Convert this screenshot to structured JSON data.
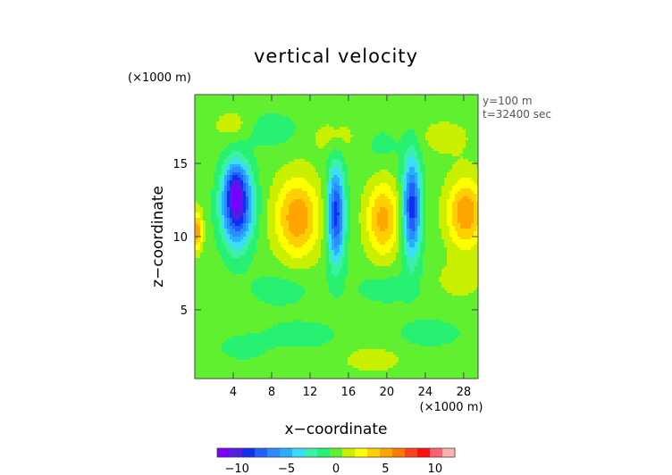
{
  "chart_data": {
    "type": "heatmap",
    "title": "vertical velocity",
    "xlabel": "x−coordinate",
    "ylabel": "z−coordinate",
    "x_unit": "(×1000 m)",
    "y_unit": "(×1000 m)",
    "xlim": [
      0,
      29.5
    ],
    "ylim": [
      0.3,
      19.7
    ],
    "x_ticks": [
      "4",
      "8",
      "12",
      "16",
      "20",
      "24",
      "28"
    ],
    "y_ticks": [
      "5",
      "10",
      "15"
    ],
    "x_tick_values": [
      4,
      8,
      12,
      16,
      20,
      24,
      28
    ],
    "y_tick_values": [
      5,
      10,
      15
    ],
    "annotations": [
      "y=100 m",
      "t=32400 sec"
    ],
    "colorbar": {
      "ticks": [
        "−10",
        "−5",
        "0",
        "5",
        "10"
      ],
      "tick_values": [
        -10,
        -5,
        0,
        5,
        10
      ],
      "range": [
        -12,
        12
      ],
      "colors": [
        "#7800ff",
        "#5020e0",
        "#1030f0",
        "#2060ff",
        "#2a8cff",
        "#28b0ff",
        "#3cdcff",
        "#3cf0a8",
        "#28f070",
        "#60f030",
        "#c8f000",
        "#ffff00",
        "#ffd000",
        "#ffa500",
        "#ff7800",
        "#ff4020",
        "#ff1010",
        "#ff6070",
        "#ffb0b0"
      ]
    },
    "background_level": 0,
    "features": [
      {
        "x": 4.4,
        "z": 12.1,
        "sx": 1.6,
        "sz": 2.7,
        "value": -10.5
      },
      {
        "x": 4.2,
        "z": 13.6,
        "sx": 1.0,
        "sz": 1.5,
        "value": -3.0
      },
      {
        "x": 10.7,
        "z": 11.3,
        "sx": 2.3,
        "sz": 2.7,
        "value": 5.5
      },
      {
        "x": 14.7,
        "z": 11.5,
        "sx": 0.9,
        "sz": 3.3,
        "value": -9.0
      },
      {
        "x": 19.6,
        "z": 11.2,
        "sx": 1.7,
        "sz": 2.5,
        "value": 5.0
      },
      {
        "x": 22.6,
        "z": 12.0,
        "sx": 0.95,
        "sz": 3.4,
        "value": -9.0
      },
      {
        "x": 28.2,
        "z": 11.6,
        "sx": 1.9,
        "sz": 2.4,
        "value": 5.5
      },
      {
        "x": 0.2,
        "z": 10.4,
        "sx": 0.6,
        "sz": 1.3,
        "value": 5.5
      },
      {
        "x": 8.0,
        "z": 17.3,
        "sx": 3.0,
        "sz": 1.2,
        "value": -1.5
      },
      {
        "x": 14.5,
        "z": 16.8,
        "sx": 2.5,
        "sz": 1.2,
        "value": 1.3
      },
      {
        "x": 19.5,
        "z": 16.2,
        "sx": 2.2,
        "sz": 1.4,
        "value": -1.0
      },
      {
        "x": 26.0,
        "z": 16.8,
        "sx": 2.6,
        "sz": 1.2,
        "value": 1.3
      },
      {
        "x": 4.0,
        "z": 17.6,
        "sx": 2.0,
        "sz": 1.0,
        "value": 1.5
      },
      {
        "x": 9.0,
        "z": 6.4,
        "sx": 3.5,
        "sz": 1.3,
        "value": -1.3
      },
      {
        "x": 20.0,
        "z": 6.5,
        "sx": 3.5,
        "sz": 1.2,
        "value": -1.3
      },
      {
        "x": 27.5,
        "z": 7.0,
        "sx": 2.5,
        "sz": 1.2,
        "value": 1.3
      },
      {
        "x": 11.0,
        "z": 3.3,
        "sx": 4.0,
        "sz": 1.0,
        "value": -1.4
      },
      {
        "x": 24.5,
        "z": 3.4,
        "sx": 3.5,
        "sz": 1.0,
        "value": -1.4
      },
      {
        "x": 5.0,
        "z": 2.4,
        "sx": 2.5,
        "sz": 0.9,
        "value": -1.3
      },
      {
        "x": 18.5,
        "z": 1.6,
        "sx": 3.0,
        "sz": 0.9,
        "value": 1.4
      }
    ]
  }
}
